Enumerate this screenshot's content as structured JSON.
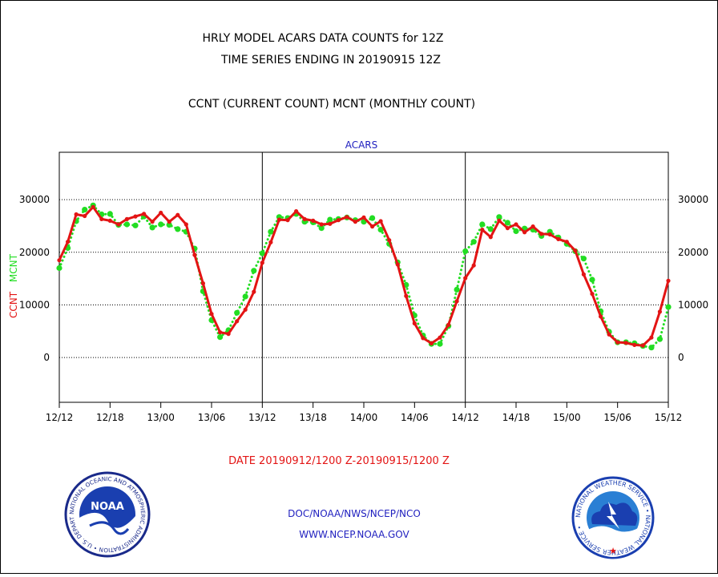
{
  "titles": {
    "line1": "HRLY MODEL ACARS DATA COUNTS for 12Z",
    "line2": "TIME SERIES ENDING IN 20190915 12Z",
    "line3": "CCNT (CURRENT COUNT) MCNT (MONTHLY COUNT)"
  },
  "footer": {
    "date_range": "DATE 20190912/1200 Z-20190915/1200 Z",
    "org": "DOC/NOAA/NWS/NCEP/NCO",
    "url": "WWW.NCEP.NOAA.GOV"
  },
  "logos": {
    "noaa_text": "NOAA",
    "noaa_ring": "NATIONAL OCEANIC AND ATMOSPHERIC ADMINISTRATION • U.S. DEPARTMENT OF COMMERCE •",
    "nws_ring": "NATIONAL WEATHER SERVICE • NATIONAL WEATHER SERVICE •"
  },
  "colors": {
    "ccnt": "#e31414",
    "mcnt": "#22dd22",
    "text_blue": "#1f1fbf"
  },
  "chart_data": {
    "type": "line",
    "title": "ACARS",
    "ylabel_parts": [
      "CCNT",
      "MCNT"
    ],
    "x_tick_labels": [
      "12/12",
      "12/18",
      "13/00",
      "13/06",
      "13/12",
      "13/18",
      "14/00",
      "14/06",
      "14/12",
      "14/18",
      "15/00",
      "15/06",
      "15/12"
    ],
    "x_range_hours": [
      0,
      72
    ],
    "ylim": [
      -8500,
      39000
    ],
    "y_ticks": [
      0,
      10000,
      20000,
      30000
    ],
    "grid": true,
    "day_dividers_hours": [
      24,
      48
    ],
    "series": [
      {
        "name": "CCNT",
        "style": "solid",
        "values": [
          18500,
          22000,
          27200,
          26900,
          28600,
          26300,
          26000,
          25300,
          26300,
          26800,
          27300,
          25800,
          27500,
          25800,
          27100,
          25300,
          19500,
          14100,
          8300,
          4800,
          4500,
          6900,
          9100,
          12500,
          18000,
          21900,
          26200,
          26100,
          27800,
          26300,
          26000,
          25300,
          25400,
          26100,
          26700,
          25800,
          26600,
          24900,
          25900,
          22300,
          17700,
          11700,
          6500,
          3700,
          2700,
          3800,
          6200,
          10700,
          15100,
          17500,
          24300,
          22900,
          26000,
          24600,
          25300,
          23800,
          24900,
          23500,
          23400,
          22500,
          22000,
          20300,
          15800,
          12100,
          7800,
          4400,
          2900,
          2800,
          2400,
          2300,
          3800,
          8700,
          14600
        ]
      },
      {
        "name": "MCNT",
        "style": "dotted",
        "values": [
          17000,
          20800,
          25900,
          28100,
          28900,
          27200,
          27300,
          25200,
          25300,
          25100,
          26800,
          24700,
          25300,
          25200,
          24400,
          23900,
          20700,
          12600,
          7100,
          3900,
          5200,
          8500,
          11600,
          16500,
          19800,
          23900,
          26700,
          26500,
          27300,
          25800,
          25700,
          24600,
          26200,
          26300,
          26600,
          26100,
          25800,
          26500,
          24300,
          21600,
          18100,
          13800,
          8000,
          4200,
          2600,
          2600,
          6000,
          12900,
          20200,
          22000,
          25300,
          24400,
          26700,
          25600,
          24000,
          24500,
          24300,
          23100,
          23900,
          22800,
          21600,
          20200,
          18800,
          14800,
          8800,
          4900,
          2900,
          2900,
          2700,
          2200,
          1900,
          3500,
          9600
        ]
      }
    ]
  }
}
